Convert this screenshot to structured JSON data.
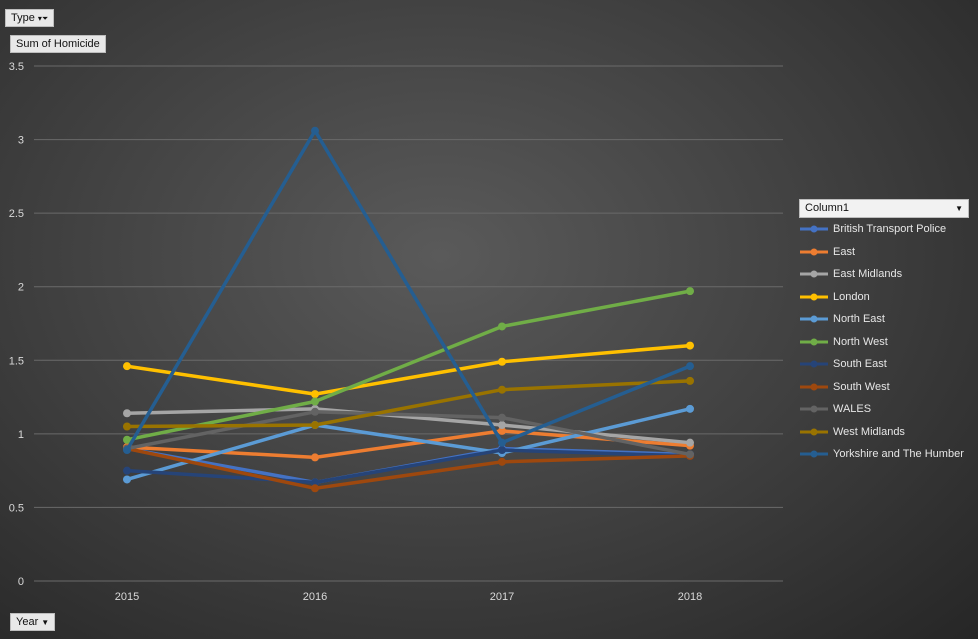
{
  "filters": {
    "type_label": "Type",
    "value_label": "Sum of Homicide",
    "axis_field_label": "Year",
    "legend_field_label": "Column1"
  },
  "chart_data": {
    "type": "line",
    "title": "",
    "xlabel": "",
    "ylabel": "",
    "categories": [
      "2015",
      "2016",
      "2017",
      "2018"
    ],
    "ylim": [
      0,
      3.5
    ],
    "yticks": [
      "0",
      "0.5",
      "1",
      "1.5",
      "2",
      "2.5",
      "3",
      "3.5"
    ],
    "grid": true,
    "legend_position": "right",
    "series": [
      {
        "name": "British Transport Police",
        "color": "#4472c4",
        "values": [
          0.9,
          0.67,
          0.9,
          0.86
        ]
      },
      {
        "name": "East",
        "color": "#ed7d31",
        "values": [
          0.91,
          0.84,
          1.02,
          0.92
        ]
      },
      {
        "name": "East Midlands",
        "color": "#a5a5a5",
        "values": [
          1.14,
          1.17,
          1.06,
          0.94
        ]
      },
      {
        "name": "London",
        "color": "#ffc000",
        "values": [
          1.46,
          1.27,
          1.49,
          1.6
        ]
      },
      {
        "name": "North East",
        "color": "#5b9bd5",
        "values": [
          0.69,
          1.06,
          0.87,
          1.17
        ]
      },
      {
        "name": "North West",
        "color": "#70ad47",
        "values": [
          0.96,
          1.22,
          1.73,
          1.97
        ]
      },
      {
        "name": "South East",
        "color": "#264478",
        "values": [
          0.75,
          0.67,
          0.89,
          0.85
        ]
      },
      {
        "name": "South West",
        "color": "#9e480e",
        "values": [
          0.9,
          0.63,
          0.81,
          0.85
        ]
      },
      {
        "name": "WALES",
        "color": "#636363",
        "values": [
          0.9,
          1.15,
          1.11,
          0.86
        ]
      },
      {
        "name": "West Midlands",
        "color": "#997300",
        "values": [
          1.05,
          1.06,
          1.3,
          1.36
        ]
      },
      {
        "name": "Yorkshire and The Humber",
        "color": "#255e91",
        "values": [
          0.89,
          3.06,
          0.94,
          1.46
        ]
      }
    ]
  }
}
